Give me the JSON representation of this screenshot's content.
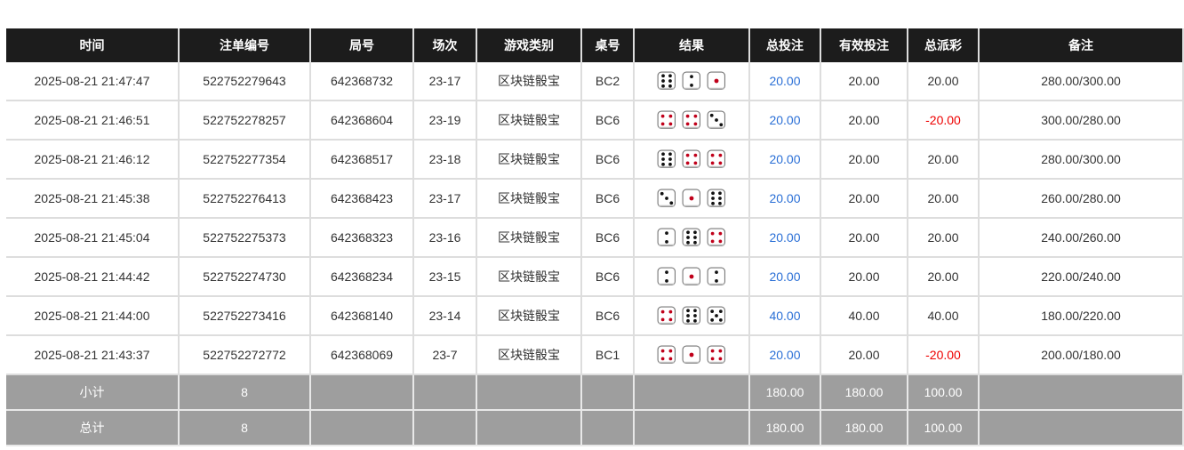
{
  "headers": [
    "时间",
    "注单编号",
    "局号",
    "场次",
    "游戏类别",
    "桌号",
    "结果",
    "总投注",
    "有效投注",
    "总派彩",
    "备注"
  ],
  "rows": [
    {
      "time": "2025-08-21 21:47:47",
      "bet_id": "522752279643",
      "round": "642368732",
      "session": "23-17",
      "game": "区块链骰宝",
      "table": "BC2",
      "dice": [
        6,
        2,
        1
      ],
      "total_bet": "20.00",
      "valid_bet": "20.00",
      "payout": "20.00",
      "payout_negative": false,
      "note": "280.00/300.00"
    },
    {
      "time": "2025-08-21 21:46:51",
      "bet_id": "522752278257",
      "round": "642368604",
      "session": "23-19",
      "game": "区块链骰宝",
      "table": "BC6",
      "dice": [
        4,
        4,
        3
      ],
      "total_bet": "20.00",
      "valid_bet": "20.00",
      "payout": "-20.00",
      "payout_negative": true,
      "note": "300.00/280.00"
    },
    {
      "time": "2025-08-21 21:46:12",
      "bet_id": "522752277354",
      "round": "642368517",
      "session": "23-18",
      "game": "区块链骰宝",
      "table": "BC6",
      "dice": [
        6,
        4,
        4
      ],
      "total_bet": "20.00",
      "valid_bet": "20.00",
      "payout": "20.00",
      "payout_negative": false,
      "note": "280.00/300.00"
    },
    {
      "time": "2025-08-21 21:45:38",
      "bet_id": "522752276413",
      "round": "642368423",
      "session": "23-17",
      "game": "区块链骰宝",
      "table": "BC6",
      "dice": [
        3,
        1,
        6
      ],
      "total_bet": "20.00",
      "valid_bet": "20.00",
      "payout": "20.00",
      "payout_negative": false,
      "note": "260.00/280.00"
    },
    {
      "time": "2025-08-21 21:45:04",
      "bet_id": "522752275373",
      "round": "642368323",
      "session": "23-16",
      "game": "区块链骰宝",
      "table": "BC6",
      "dice": [
        2,
        6,
        4
      ],
      "total_bet": "20.00",
      "valid_bet": "20.00",
      "payout": "20.00",
      "payout_negative": false,
      "note": "240.00/260.00"
    },
    {
      "time": "2025-08-21 21:44:42",
      "bet_id": "522752274730",
      "round": "642368234",
      "session": "23-15",
      "game": "区块链骰宝",
      "table": "BC6",
      "dice": [
        2,
        1,
        2
      ],
      "total_bet": "20.00",
      "valid_bet": "20.00",
      "payout": "20.00",
      "payout_negative": false,
      "note": "220.00/240.00"
    },
    {
      "time": "2025-08-21 21:44:00",
      "bet_id": "522752273416",
      "round": "642368140",
      "session": "23-14",
      "game": "区块链骰宝",
      "table": "BC6",
      "dice": [
        4,
        6,
        5
      ],
      "total_bet": "40.00",
      "valid_bet": "40.00",
      "payout": "40.00",
      "payout_negative": false,
      "note": "180.00/220.00"
    },
    {
      "time": "2025-08-21 21:43:37",
      "bet_id": "522752272772",
      "round": "642368069",
      "session": "23-7",
      "game": "区块链骰宝",
      "table": "BC1",
      "dice": [
        4,
        1,
        4
      ],
      "total_bet": "20.00",
      "valid_bet": "20.00",
      "payout": "-20.00",
      "payout_negative": true,
      "note": "200.00/180.00"
    }
  ],
  "summary": [
    {
      "label": "小计",
      "count": "8",
      "total_bet": "180.00",
      "valid_bet": "180.00",
      "payout": "100.00"
    },
    {
      "label": "总计",
      "count": "8",
      "total_bet": "180.00",
      "valid_bet": "180.00",
      "payout": "100.00"
    }
  ],
  "colors": {
    "header_bg": "#1c1c1c",
    "summary_bg": "#9e9e9e",
    "bet_link": "#2a6fd6",
    "negative": "#e00000",
    "red_pip": "#c0001a"
  }
}
